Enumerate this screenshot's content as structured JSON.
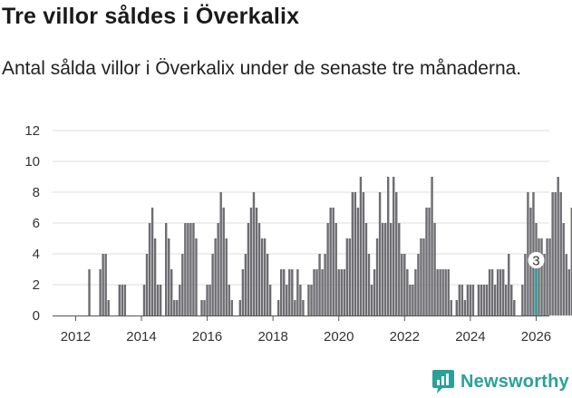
{
  "title": "Tre villor såldes i Överkalix",
  "subtitle": "Antal sålda villor i Överkalix under de senaste tre månaderna.",
  "brand": {
    "name": "Newsworthy"
  },
  "colors": {
    "bar": "#6e6d72",
    "highlight": "#17a2a0",
    "grid": "#dcdcdc",
    "axis": "#555555",
    "brand": "#2aa198"
  },
  "chart_data": {
    "type": "bar",
    "title": "Tre villor såldes i Överkalix",
    "xlabel": "",
    "ylabel": "Antal sålda villor",
    "ylim": [
      0,
      12
    ],
    "yticks": [
      0,
      2,
      4,
      6,
      8,
      10,
      12
    ],
    "xlim": [
      2011.3,
      2026.4
    ],
    "xticks": [
      2012,
      2014,
      2016,
      2018,
      2020,
      2022,
      2024,
      2026
    ],
    "grid": true,
    "x_start": 2011.5,
    "bar_step_months": 1,
    "values": [
      0,
      0,
      0,
      0,
      0,
      0,
      0,
      0,
      0,
      0,
      0,
      3,
      0,
      0,
      0,
      3,
      4,
      4,
      1,
      0,
      0,
      0,
      2,
      2,
      2,
      0,
      0,
      0,
      0,
      0,
      0,
      2,
      4,
      6,
      7,
      5,
      2,
      2,
      0,
      6,
      5,
      3,
      1,
      1,
      2,
      4,
      6,
      6,
      6,
      6,
      5,
      0,
      1,
      1,
      2,
      2,
      4,
      5,
      6,
      8,
      7,
      5,
      2,
      1,
      0,
      0,
      1,
      3,
      4,
      6,
      7,
      8,
      7,
      6,
      5,
      5,
      4,
      2,
      0,
      0,
      1,
      3,
      3,
      2,
      3,
      3,
      1,
      3,
      2,
      1,
      0,
      2,
      2,
      3,
      3,
      4,
      3,
      4,
      6,
      7,
      7,
      6,
      3,
      3,
      3,
      5,
      5,
      8,
      8,
      7,
      9,
      8,
      6,
      4,
      2,
      3,
      5,
      8,
      6,
      6,
      9,
      6,
      9,
      8,
      6,
      4,
      4,
      3,
      2,
      2,
      3,
      4,
      5,
      5,
      7,
      7,
      9,
      6,
      3,
      3,
      3,
      3,
      3,
      1,
      0,
      1,
      2,
      2,
      1,
      2,
      2,
      2,
      0,
      2,
      2,
      2,
      2,
      3,
      3,
      2,
      3,
      3,
      3,
      2,
      4,
      2,
      1,
      0,
      0,
      2,
      4,
      8,
      7,
      8,
      6,
      5,
      5,
      4,
      5,
      5,
      8,
      8,
      9,
      8,
      6,
      4,
      3,
      7,
      9,
      8,
      6,
      3
    ],
    "highlight": {
      "x": 2026.0,
      "value": 3,
      "label": "3"
    }
  }
}
